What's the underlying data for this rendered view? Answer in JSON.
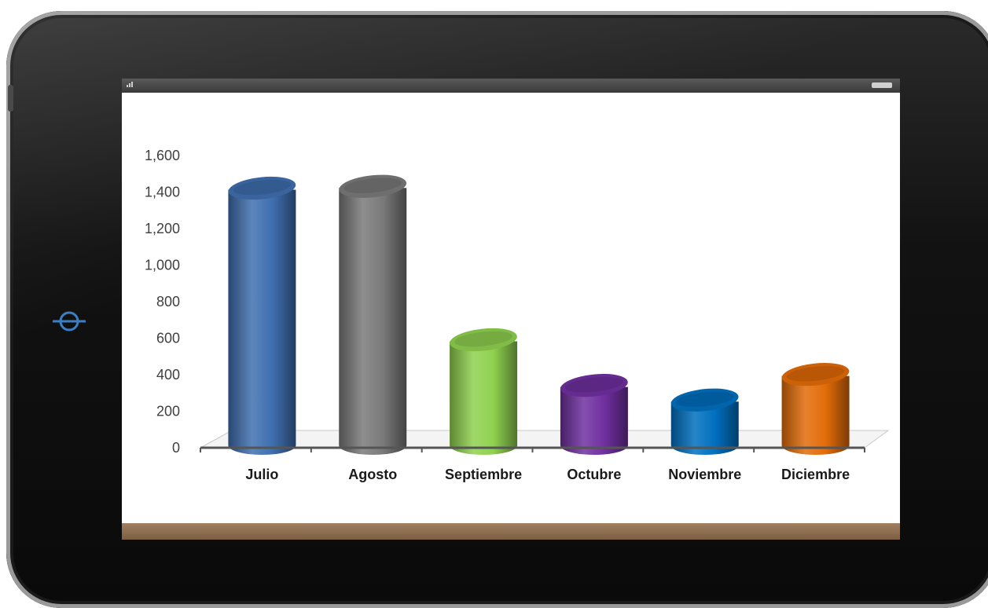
{
  "chart_data": {
    "type": "bar",
    "categories": [
      "Julio",
      "Agosto",
      "Septiembre",
      "Octubre",
      "Noviembre",
      "Diciembre"
    ],
    "values": [
      1430,
      1440,
      600,
      350,
      270,
      410
    ],
    "yticks": [
      "0",
      "200",
      "400",
      "600",
      "800",
      "1,000",
      "1,200",
      "1,400",
      "1,600"
    ],
    "ylim": [
      0,
      1600
    ],
    "title": "",
    "xlabel": "",
    "ylabel": "",
    "grid": false,
    "legend": "none",
    "colors": [
      "#3f6fb0",
      "#7a7a7a",
      "#8fd14f",
      "#7030a0",
      "#0070c0",
      "#e36c09"
    ]
  },
  "device": {
    "icons": [
      "home-button-icon",
      "battery-icon",
      "signal-icon"
    ]
  }
}
